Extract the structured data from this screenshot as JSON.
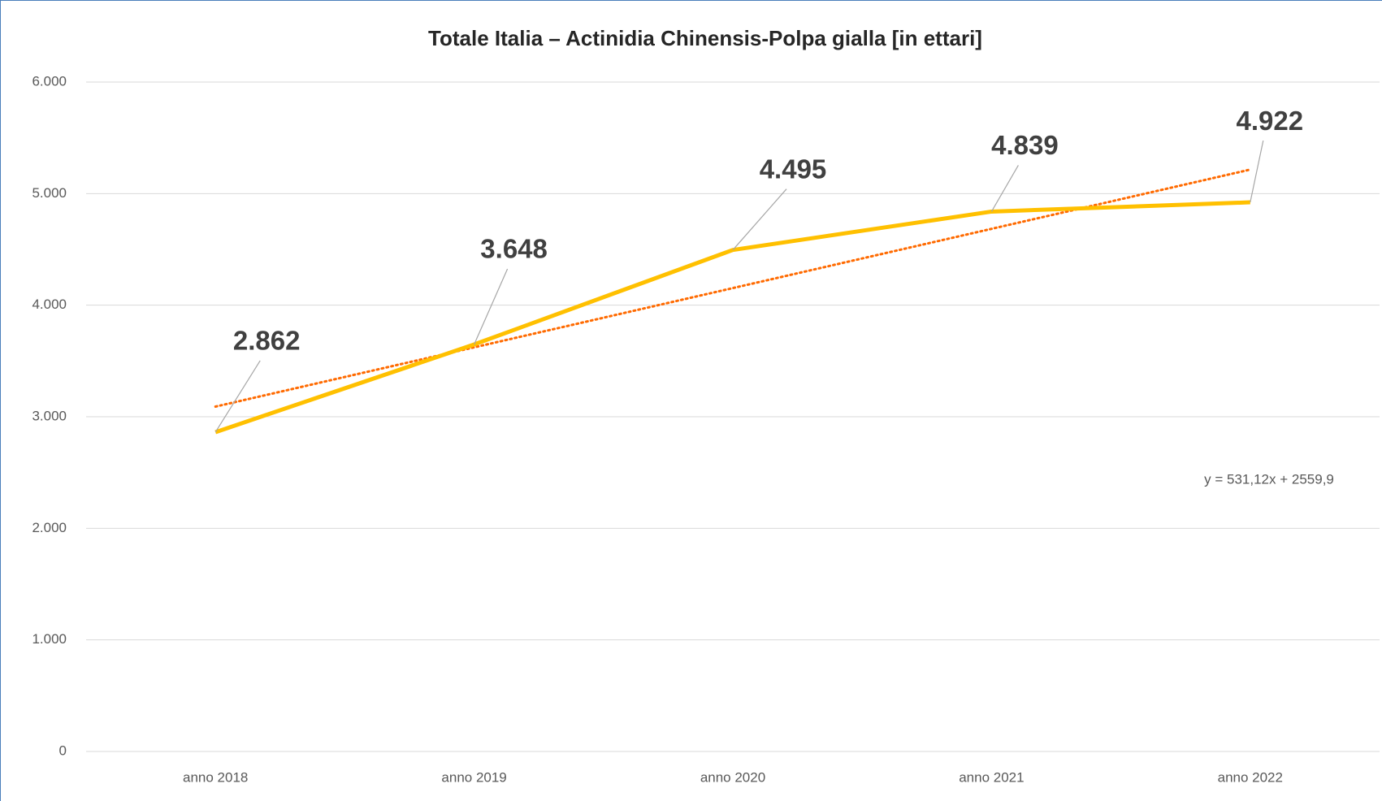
{
  "chart_data": {
    "type": "line",
    "title": "Totale Italia – Actinidia Chinensis-Polpa gialla [in ettari]",
    "categories": [
      "anno 2018",
      "anno 2019",
      "anno 2020",
      "anno 2021",
      "anno 2022"
    ],
    "series": [
      {
        "name": "Actinidia Chinensis-Polpa gialla",
        "color": "#ffc000",
        "values": [
          2862,
          3648,
          4495,
          4839,
          4922
        ],
        "value_labels": [
          "2.862",
          "3.648",
          "4.495",
          "4.839",
          "4.922"
        ]
      }
    ],
    "trendline": {
      "label": "y = 531,12x + 2559,9",
      "slope": 531.12,
      "intercept": 2559.9,
      "color": "#ff6a00"
    },
    "ylim": [
      0,
      6000
    ],
    "yticks": [
      0,
      {
        "value": 1000,
        "label": "1.000"
      },
      {
        "value": 2000,
        "label": "2.000"
      },
      {
        "value": 3000,
        "label": "3.000"
      },
      {
        "value": 4000,
        "label": "4.000"
      },
      {
        "value": 5000,
        "label": "5.000"
      },
      {
        "value": 6000,
        "label": "6.000"
      }
    ],
    "grid": true
  }
}
